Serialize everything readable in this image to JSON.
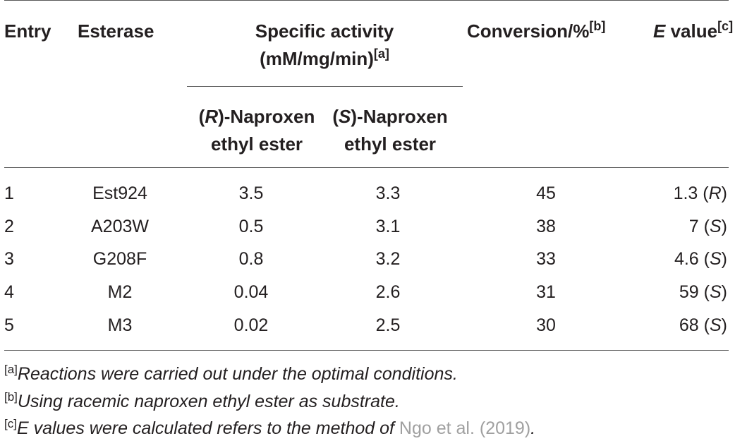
{
  "header": {
    "entry": "Entry",
    "esterase": "Esterase",
    "specific_activity_line1": "Specific activity",
    "specific_activity_line2": "(mM/mg/min)",
    "specific_activity_sup": "[a]",
    "r_prefix": "(",
    "r_letter": "R",
    "r_suffix": ")-Naproxen",
    "s_prefix": "(",
    "s_letter": "S",
    "s_suffix": ")-Naproxen",
    "ethyl_ester": "ethyl ester",
    "conversion": "Conversion/%",
    "conversion_sup": "[b]",
    "e_letter": "E",
    "e_value": " value",
    "e_sup": "[c]"
  },
  "rows": [
    {
      "entry": "1",
      "esterase": "Est924",
      "r": "3.5",
      "s": "3.3",
      "conversion": "45",
      "e_num": "1.3",
      "e_config": "R"
    },
    {
      "entry": "2",
      "esterase": "A203W",
      "r": "0.5",
      "s": "3.1",
      "conversion": "38",
      "e_num": "7",
      "e_config": "S"
    },
    {
      "entry": "3",
      "esterase": "G208F",
      "r": "0.8",
      "s": "3.2",
      "conversion": "33",
      "e_num": "4.6",
      "e_config": "S"
    },
    {
      "entry": "4",
      "esterase": "M2",
      "r": "0.04",
      "s": "2.6",
      "conversion": "31",
      "e_num": "59",
      "e_config": "S"
    },
    {
      "entry": "5",
      "esterase": "M3",
      "r": "0.02",
      "s": "2.5",
      "conversion": "30",
      "e_num": "68",
      "e_config": "S"
    }
  ],
  "footnotes": [
    {
      "mark": "[a]",
      "text": "Reactions were carried out under the optimal conditions."
    },
    {
      "mark": "[b]",
      "text": "Using racemic naproxen ethyl ester as substrate."
    },
    {
      "mark": "[c]",
      "text": "E values were calculated refers to the method of ",
      "link": "Ngo et al. (2019)",
      "end": "."
    }
  ]
}
